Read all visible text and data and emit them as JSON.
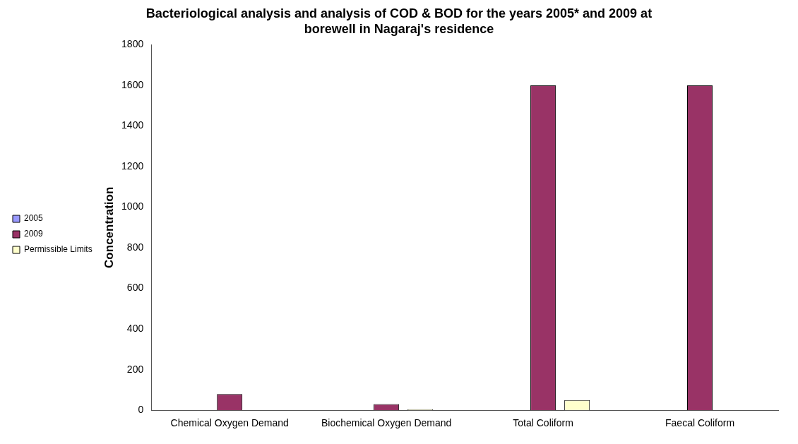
{
  "chart_data": {
    "type": "bar",
    "title": "Bacteriological analysis and analysis of COD & BOD for the years 2005* and 2009 at borewell in Nagaraj's residence",
    "ylabel": "Concentration",
    "categories": [
      "Chemical Oxygen Demand",
      "Biochemical Oxygen Demand",
      "Total Coliform",
      "Faecal Coliform"
    ],
    "series": [
      {
        "name": "2005",
        "color": "#9999ff",
        "values": [
          null,
          null,
          null,
          null
        ]
      },
      {
        "name": "2009",
        "color": "#993366",
        "values": [
          80,
          30,
          1600,
          1600
        ]
      },
      {
        "name": "Permissible Limits",
        "color": "#ffffcc",
        "values": [
          null,
          5,
          50,
          null
        ]
      }
    ],
    "ylim": [
      0,
      1800
    ],
    "yticks": [
      0,
      200,
      400,
      600,
      800,
      1000,
      1200,
      1400,
      1600,
      1800
    ],
    "grid": false,
    "legend": "left"
  }
}
